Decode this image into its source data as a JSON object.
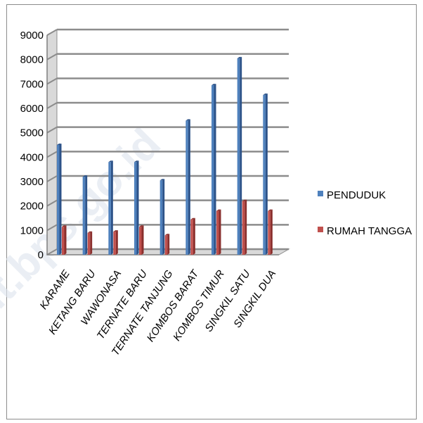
{
  "watermark": "sulut.bps.go.id",
  "colors": {
    "penduduk": "#4f81bd",
    "penduduk_dark": "#2c5288",
    "rumah": "#c0504d",
    "rumah_dark": "#8a2f2d",
    "grid": "#8c8c8c",
    "wall": "#d9d9d9"
  },
  "chart_data": {
    "type": "bar",
    "title": "",
    "xlabel": "",
    "ylabel": "",
    "ylim": [
      0,
      9000
    ],
    "yticks": [
      "0",
      "1000",
      "2000",
      "3000",
      "4000",
      "5000",
      "6000",
      "7000",
      "8000",
      "9000"
    ],
    "grid": true,
    "legend_position": "right",
    "categories": [
      "KARAME",
      "KETANG BARU",
      "WAWONASA",
      "TERNATE BARU",
      "TERNATE TANJUNG",
      "KOMBOS BARAT",
      "KOMBOS TIMUR",
      "SINGKIL SATU",
      "SINGKIL DUA"
    ],
    "series": [
      {
        "name": "PENDUDUK",
        "values": [
          4500,
          3200,
          3800,
          3800,
          3050,
          5500,
          6950,
          8050,
          6550
        ]
      },
      {
        "name": "RUMAH TANGGA",
        "values": [
          1150,
          900,
          950,
          1150,
          800,
          1450,
          1800,
          2200,
          1800
        ]
      }
    ]
  }
}
